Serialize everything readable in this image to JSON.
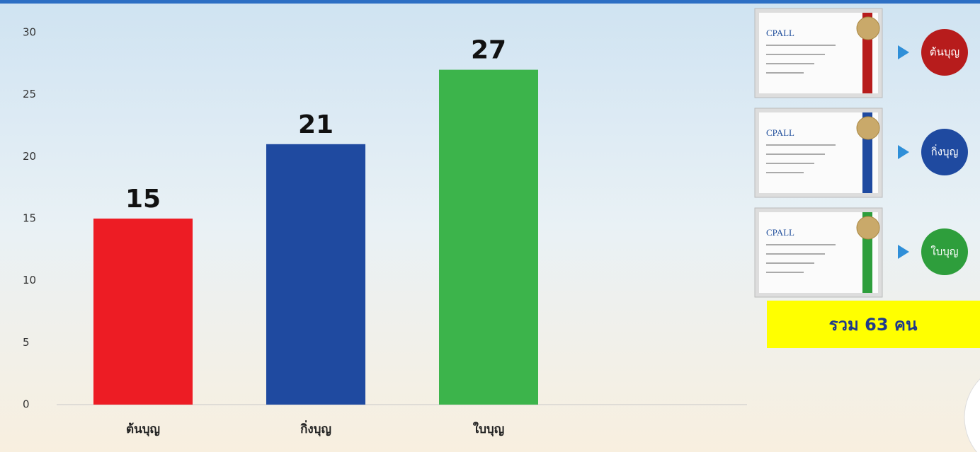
{
  "chart_data": {
    "type": "bar",
    "categories": [
      "ต้นบุญ",
      "กิ่งบุญ",
      "ใบบุญ"
    ],
    "values": [
      15,
      21,
      27
    ],
    "colors": [
      "#ed1c24",
      "#1f4aa0",
      "#3cb44b"
    ],
    "ylim": [
      0,
      30
    ],
    "yticks": [
      0,
      5,
      10,
      15,
      20,
      25,
      30
    ],
    "grid": false
  },
  "side_panel": {
    "items": [
      {
        "logo": "CPALL",
        "label": "ต้นบุญ",
        "color": "#b71c1c"
      },
      {
        "logo": "CPALL",
        "label": "กิ่งบุญ",
        "color": "#1f4aa0"
      },
      {
        "logo": "CPALL",
        "label": "ใบบุญ",
        "color": "#2e9e3c"
      }
    ],
    "total": "รวม 63 คน"
  }
}
